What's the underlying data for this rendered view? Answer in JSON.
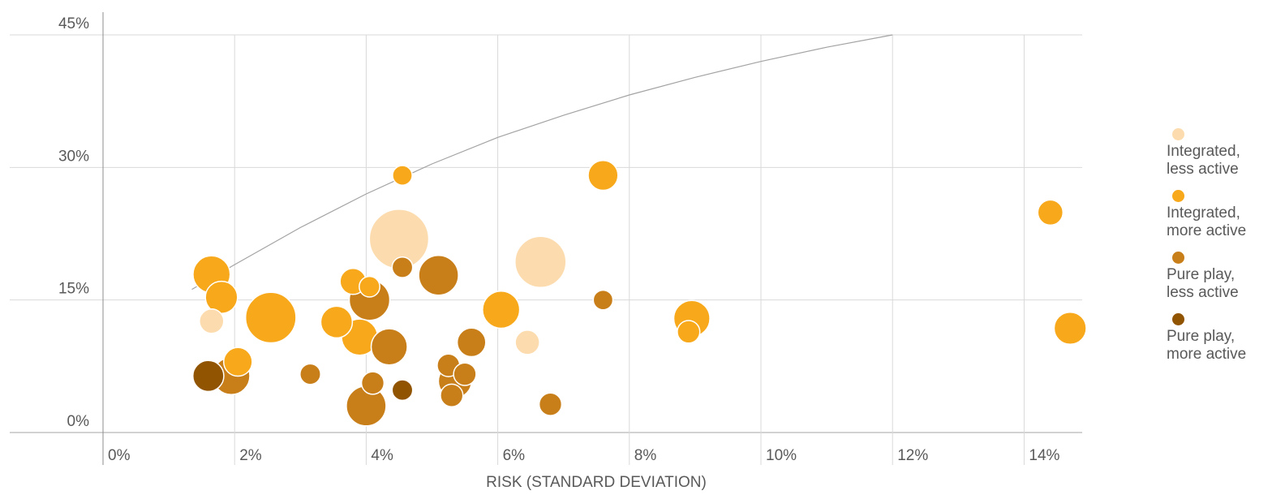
{
  "chart_data": {
    "type": "scatter",
    "title": "",
    "xlabel": "RISK (STANDARD DEVIATION)",
    "ylabel": "",
    "xlim": [
      0,
      15
    ],
    "ylim": [
      0,
      45
    ],
    "x_ticks": [
      "0%",
      "2%",
      "4%",
      "6%",
      "8%",
      "10%",
      "12%",
      "14%"
    ],
    "y_ticks": [
      "0%",
      "15%",
      "30%",
      "45%"
    ],
    "grid": true,
    "legend_position": "right",
    "frontier_curve": [
      [
        1.35,
        16.2
      ],
      [
        2,
        19
      ],
      [
        3,
        23.2
      ],
      [
        4,
        27
      ],
      [
        5,
        30.4
      ],
      [
        6,
        33.4
      ],
      [
        7,
        35.9
      ],
      [
        8,
        38.2
      ],
      [
        9,
        40.2
      ],
      [
        10,
        42
      ],
      [
        11,
        43.6
      ],
      [
        12,
        45
      ]
    ],
    "series": [
      {
        "name": "Integrated,\nless active",
        "color": "#fcdcae",
        "points": [
          {
            "x": 1.65,
            "y": 12.6,
            "size": 1.0
          },
          {
            "x": 4.5,
            "y": 21.9,
            "size": 10.0
          },
          {
            "x": 6.45,
            "y": 10.2,
            "size": 1.0
          },
          {
            "x": 6.65,
            "y": 19.3,
            "size": 7.0
          }
        ]
      },
      {
        "name": "Integrated,\nmore active",
        "color": "#f7a81b",
        "points": [
          {
            "x": 1.65,
            "y": 17.9,
            "size": 3.2
          },
          {
            "x": 1.8,
            "y": 15.3,
            "size": 2.2
          },
          {
            "x": 2.05,
            "y": 8.0,
            "size": 1.6
          },
          {
            "x": 2.55,
            "y": 13.0,
            "size": 6.8
          },
          {
            "x": 3.55,
            "y": 12.5,
            "size": 2.1
          },
          {
            "x": 3.8,
            "y": 17.1,
            "size": 1.2
          },
          {
            "x": 3.9,
            "y": 10.8,
            "size": 3.0
          },
          {
            "x": 4.05,
            "y": 16.5,
            "size": 0.6
          },
          {
            "x": 4.55,
            "y": 29.1,
            "size": 0.5
          },
          {
            "x": 6.05,
            "y": 13.9,
            "size": 3.2
          },
          {
            "x": 7.6,
            "y": 29.1,
            "size": 1.8
          },
          {
            "x": 8.9,
            "y": 11.4,
            "size": 0.8
          },
          {
            "x": 8.95,
            "y": 12.9,
            "size": 3.0
          },
          {
            "x": 14.4,
            "y": 24.9,
            "size": 1.1
          },
          {
            "x": 14.7,
            "y": 11.8,
            "size": 2.2
          }
        ]
      },
      {
        "name": "Pure play,\nless active",
        "color": "#c87f1a",
        "points": [
          {
            "x": 1.95,
            "y": 6.4,
            "size": 3.2
          },
          {
            "x": 3.15,
            "y": 6.6,
            "size": 0.6
          },
          {
            "x": 4.0,
            "y": 3.0,
            "size": 3.8
          },
          {
            "x": 4.05,
            "y": 15.0,
            "size": 4.0
          },
          {
            "x": 4.1,
            "y": 5.6,
            "size": 0.8
          },
          {
            "x": 4.35,
            "y": 9.7,
            "size": 3.0
          },
          {
            "x": 4.55,
            "y": 18.7,
            "size": 0.6
          },
          {
            "x": 5.1,
            "y": 17.8,
            "size": 3.8
          },
          {
            "x": 5.25,
            "y": 7.6,
            "size": 0.8
          },
          {
            "x": 5.3,
            "y": 4.2,
            "size": 0.8
          },
          {
            "x": 5.35,
            "y": 5.8,
            "size": 2.4
          },
          {
            "x": 5.5,
            "y": 6.6,
            "size": 0.8
          },
          {
            "x": 5.6,
            "y": 10.2,
            "size": 1.6
          },
          {
            "x": 6.8,
            "y": 3.2,
            "size": 0.8
          },
          {
            "x": 7.6,
            "y": 15.0,
            "size": 0.5
          }
        ]
      },
      {
        "name": "Pure play,\nmore active",
        "color": "#915400",
        "points": [
          {
            "x": 1.6,
            "y": 6.4,
            "size": 2.0
          },
          {
            "x": 4.55,
            "y": 4.8,
            "size": 0.6
          }
        ]
      }
    ]
  }
}
